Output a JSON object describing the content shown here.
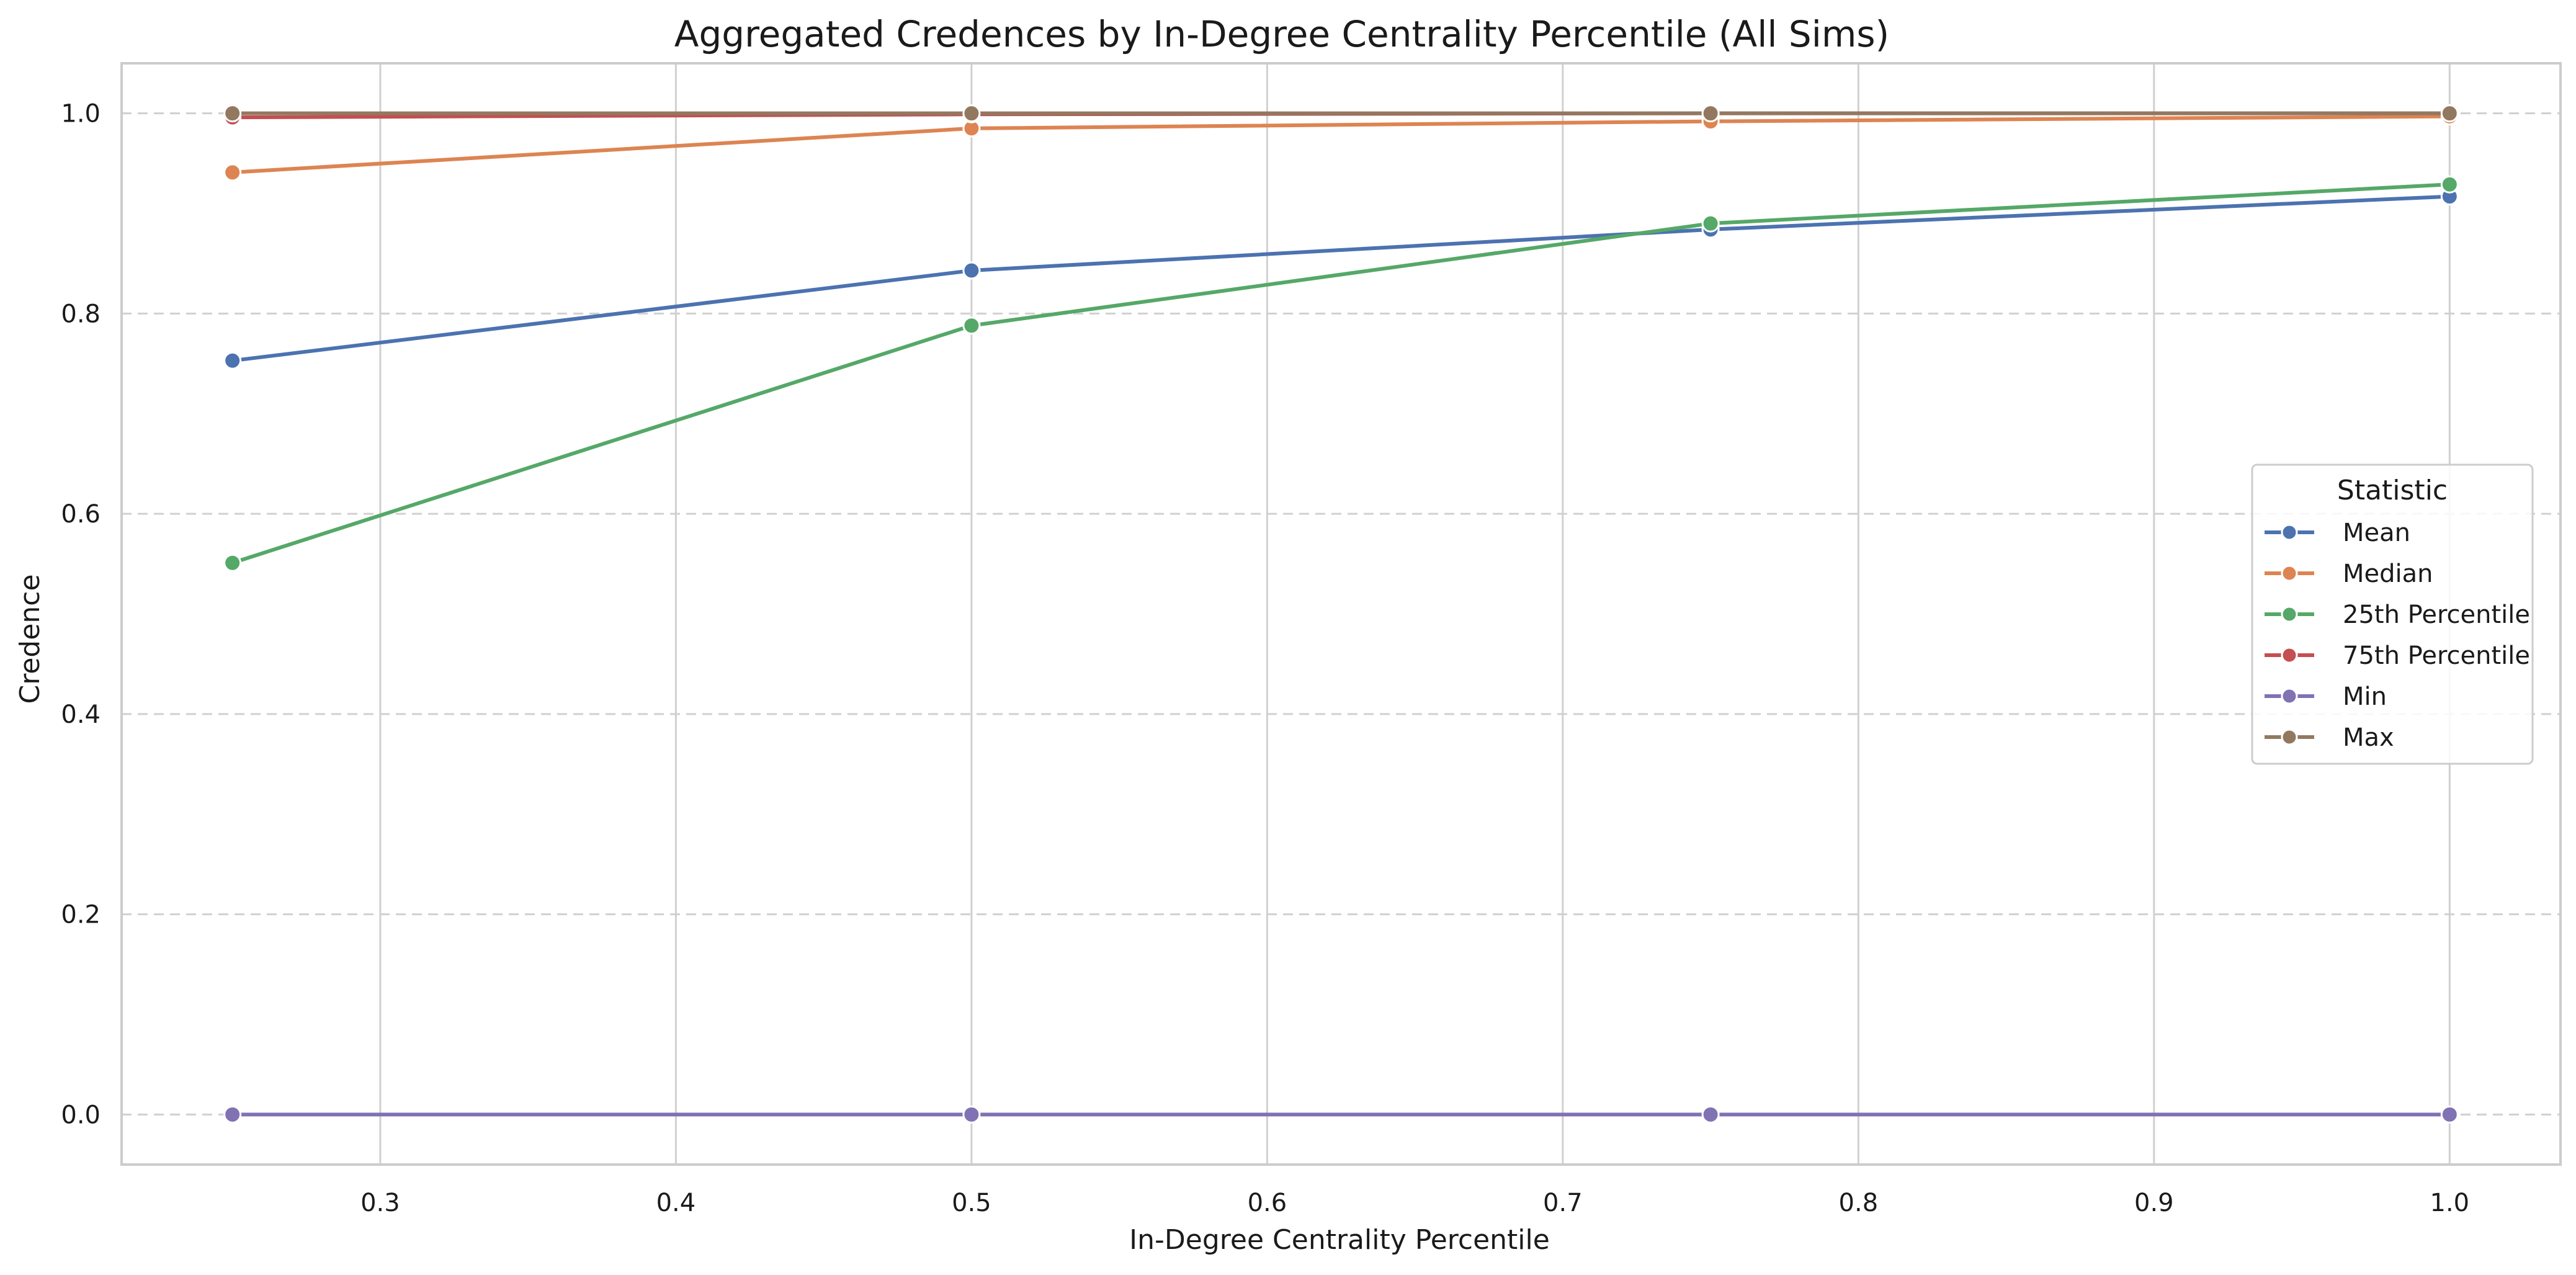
{
  "chart_data": {
    "type": "line",
    "title": "Aggregated Credences by In-Degree Centrality Percentile (All Sims)",
    "xlabel": "In-Degree Centrality Percentile",
    "ylabel": "Credence",
    "xlim": [
      0.2125,
      1.0375
    ],
    "ylim": [
      -0.05,
      1.05
    ],
    "x_ticks": [
      "0.3",
      "0.4",
      "0.5",
      "0.6",
      "0.7",
      "0.8",
      "0.9",
      "1.0"
    ],
    "y_ticks": [
      "0.0",
      "0.2",
      "0.4",
      "0.6",
      "0.8",
      "1.0"
    ],
    "grid": {
      "vertical": "solid",
      "horizontal": "dashed"
    },
    "legend": {
      "title": "Statistic",
      "placement": "center-right"
    },
    "x": [
      0.25,
      0.5,
      0.75,
      1.0
    ],
    "series": [
      {
        "name": "Mean",
        "color": "#4C72B0",
        "values": [
          0.753,
          0.843,
          0.884,
          0.917
        ]
      },
      {
        "name": "Median",
        "color": "#DD8452",
        "values": [
          0.941,
          0.985,
          0.992,
          0.997
        ]
      },
      {
        "name": "25th Percentile",
        "color": "#55A868",
        "values": [
          0.551,
          0.788,
          0.89,
          0.929
        ]
      },
      {
        "name": "75th Percentile",
        "color": "#C44E52",
        "values": [
          0.996,
          0.999,
          1.0,
          1.0
        ]
      },
      {
        "name": "Min",
        "color": "#8172B3",
        "values": [
          0.0,
          0.0,
          0.0,
          0.0
        ]
      },
      {
        "name": "Max",
        "color": "#937860",
        "values": [
          1.0,
          1.0,
          1.0,
          1.0
        ]
      }
    ]
  }
}
